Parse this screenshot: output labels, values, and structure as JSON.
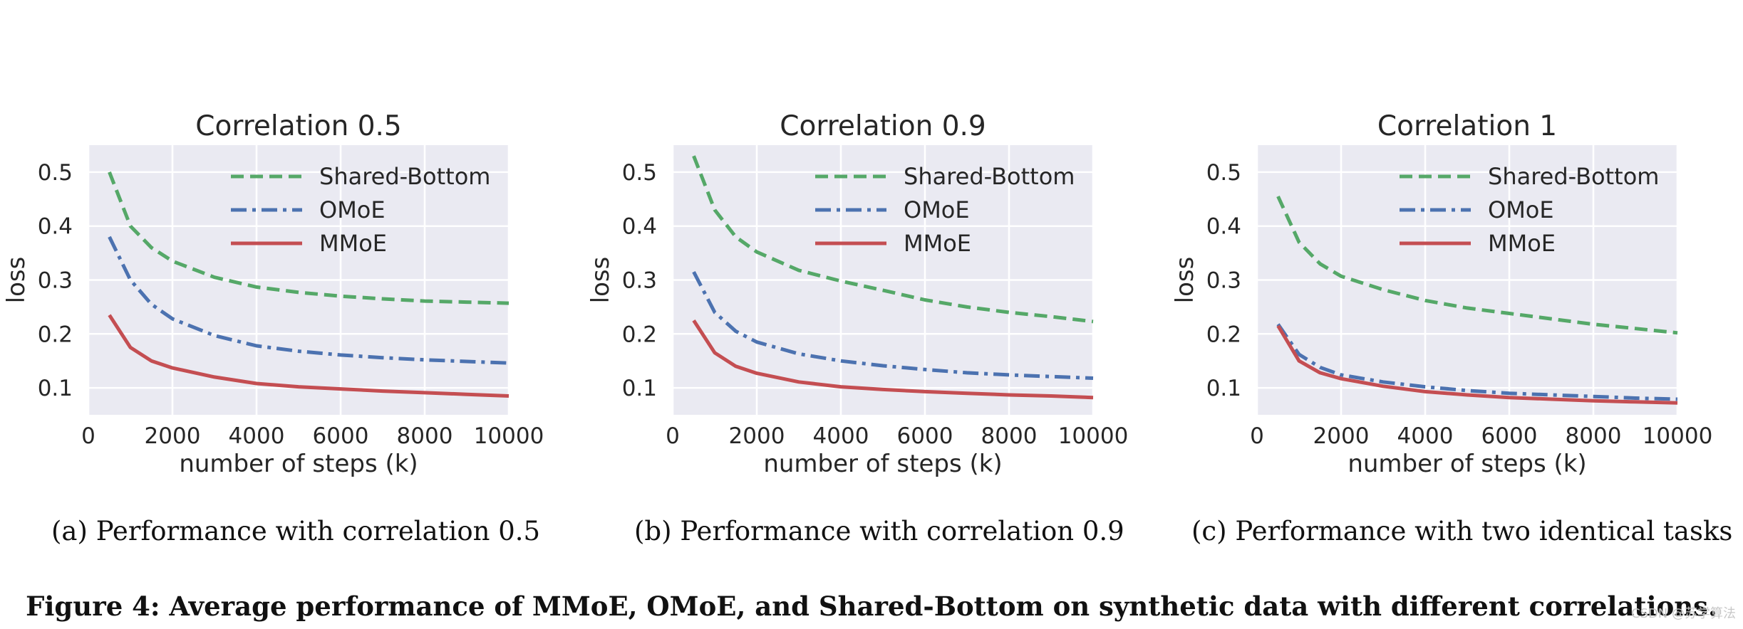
{
  "colors": {
    "panel_bg": "#eaeaf2",
    "grid": "#ffffff",
    "shared_bottom": "#55a868",
    "omoe": "#4c72b0",
    "mmoe": "#c44e52"
  },
  "chart_data": [
    {
      "type": "line",
      "title": "Correlation 0.5",
      "xlabel": "number of steps (k)",
      "ylabel": "loss",
      "xlim": [
        0,
        10000
      ],
      "ylim": [
        0.05,
        0.55
      ],
      "xticks": [
        0,
        2000,
        4000,
        6000,
        8000,
        10000
      ],
      "yticks": [
        0.1,
        0.2,
        0.3,
        0.4,
        0.5
      ],
      "grid": true,
      "legend_position": "top-right",
      "x": [
        500,
        1000,
        1500,
        2000,
        3000,
        4000,
        5000,
        6000,
        7000,
        8000,
        9000,
        10000
      ],
      "series": [
        {
          "name": "Shared-Bottom",
          "style": "dashed",
          "values": [
            0.5,
            0.4,
            0.36,
            0.335,
            0.305,
            0.287,
            0.277,
            0.27,
            0.265,
            0.261,
            0.259,
            0.257
          ]
        },
        {
          "name": "OMoE",
          "style": "dashdot",
          "values": [
            0.38,
            0.3,
            0.255,
            0.228,
            0.197,
            0.178,
            0.168,
            0.161,
            0.156,
            0.152,
            0.149,
            0.146
          ]
        },
        {
          "name": "MMoE",
          "style": "solid",
          "values": [
            0.235,
            0.175,
            0.15,
            0.137,
            0.12,
            0.108,
            0.102,
            0.098,
            0.094,
            0.091,
            0.088,
            0.085
          ]
        }
      ]
    },
    {
      "type": "line",
      "title": "Correlation 0.9",
      "xlabel": "number of steps (k)",
      "ylabel": "loss",
      "xlim": [
        0,
        10000
      ],
      "ylim": [
        0.05,
        0.55
      ],
      "xticks": [
        0,
        2000,
        4000,
        6000,
        8000,
        10000
      ],
      "yticks": [
        0.1,
        0.2,
        0.3,
        0.4,
        0.5
      ],
      "grid": true,
      "legend_position": "top-right",
      "x": [
        500,
        1000,
        1500,
        2000,
        3000,
        4000,
        5000,
        6000,
        7000,
        8000,
        9000,
        10000
      ],
      "series": [
        {
          "name": "Shared-Bottom",
          "style": "dashed",
          "values": [
            0.53,
            0.43,
            0.38,
            0.352,
            0.318,
            0.298,
            0.281,
            0.263,
            0.25,
            0.24,
            0.232,
            0.223
          ]
        },
        {
          "name": "OMoE",
          "style": "dashdot",
          "values": [
            0.315,
            0.24,
            0.205,
            0.185,
            0.163,
            0.15,
            0.141,
            0.134,
            0.128,
            0.124,
            0.121,
            0.118
          ]
        },
        {
          "name": "MMoE",
          "style": "solid",
          "values": [
            0.225,
            0.165,
            0.14,
            0.127,
            0.111,
            0.102,
            0.097,
            0.093,
            0.09,
            0.087,
            0.085,
            0.082
          ]
        }
      ]
    },
    {
      "type": "line",
      "title": "Correlation 1",
      "xlabel": "number of steps (k)",
      "ylabel": "loss",
      "xlim": [
        0,
        10000
      ],
      "ylim": [
        0.05,
        0.55
      ],
      "xticks": [
        0,
        2000,
        4000,
        6000,
        8000,
        10000
      ],
      "yticks": [
        0.1,
        0.2,
        0.3,
        0.4,
        0.5
      ],
      "grid": true,
      "legend_position": "top-right",
      "x": [
        500,
        1000,
        1500,
        2000,
        3000,
        4000,
        5000,
        6000,
        7000,
        8000,
        9000,
        10000
      ],
      "series": [
        {
          "name": "Shared-Bottom",
          "style": "dashed",
          "values": [
            0.455,
            0.37,
            0.33,
            0.307,
            0.282,
            0.262,
            0.248,
            0.238,
            0.228,
            0.218,
            0.21,
            0.202
          ]
        },
        {
          "name": "OMoE",
          "style": "dashdot",
          "values": [
            0.218,
            0.162,
            0.138,
            0.124,
            0.111,
            0.102,
            0.095,
            0.09,
            0.087,
            0.084,
            0.081,
            0.079
          ]
        },
        {
          "name": "MMoE",
          "style": "solid",
          "values": [
            0.215,
            0.15,
            0.128,
            0.117,
            0.103,
            0.093,
            0.087,
            0.082,
            0.079,
            0.076,
            0.074,
            0.072
          ]
        }
      ]
    }
  ],
  "captions": [
    "(a) Performance with correlation 0.5",
    "(b) Performance with correlation 0.9",
    "(c) Performance with two identical tasks"
  ],
  "figure_caption": "Figure 4: Average performance of MMoE, OMoE, and Shared-Bottom on synthetic data with different correlations.",
  "watermark": "CSDN @苏学算法"
}
